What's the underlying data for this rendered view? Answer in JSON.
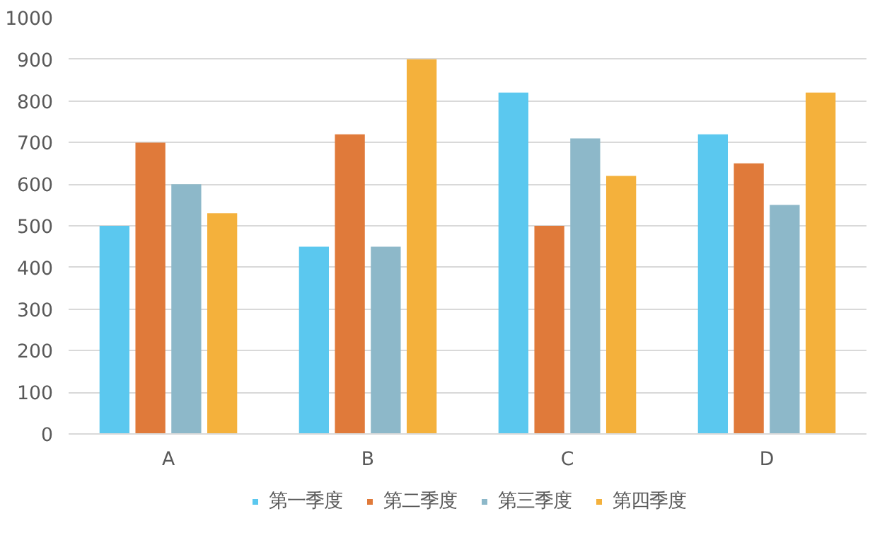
{
  "chart_data": {
    "type": "bar",
    "categories": [
      "A",
      "B",
      "C",
      "D"
    ],
    "series": [
      {
        "name": "第一季度",
        "color": "#5bc8ef",
        "values": [
          500,
          450,
          820,
          720
        ]
      },
      {
        "name": "第二季度",
        "color": "#e07a3a",
        "values": [
          700,
          720,
          500,
          650
        ]
      },
      {
        "name": "第三季度",
        "color": "#8db8c9",
        "values": [
          600,
          450,
          710,
          550
        ]
      },
      {
        "name": "第四季度",
        "color": "#f4b13c",
        "values": [
          530,
          900,
          620,
          820
        ]
      }
    ],
    "ylim": [
      0,
      1000
    ],
    "yticks": [
      0,
      100,
      200,
      300,
      400,
      500,
      600,
      700,
      800,
      900,
      1000
    ],
    "grid": "y",
    "legend": "bottom"
  }
}
